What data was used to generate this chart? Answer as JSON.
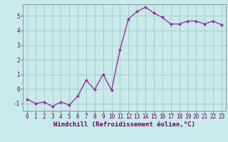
{
  "x": [
    0,
    1,
    2,
    3,
    4,
    5,
    6,
    7,
    8,
    9,
    10,
    11,
    12,
    13,
    14,
    15,
    16,
    17,
    18,
    19,
    20,
    21,
    22,
    23
  ],
  "y": [
    -0.7,
    -1.0,
    -0.9,
    -1.2,
    -0.9,
    -1.1,
    -0.5,
    0.6,
    -0.05,
    1.0,
    -0.1,
    2.7,
    4.8,
    5.3,
    5.6,
    5.2,
    4.9,
    4.45,
    4.45,
    4.65,
    4.65,
    4.45,
    4.65,
    4.4
  ],
  "line_color": "#993399",
  "marker": "D",
  "marker_size": 2.0,
  "bg_color": "#c8eaea",
  "grid_color": "#a0c8c8",
  "xlabel": "Windchill (Refroidissement éolien,°C)",
  "xlim": [
    -0.5,
    23.5
  ],
  "ylim": [
    -1.5,
    5.8
  ],
  "yticks": [
    -1,
    0,
    1,
    2,
    3,
    4,
    5
  ],
  "xticks": [
    0,
    1,
    2,
    3,
    4,
    5,
    6,
    7,
    8,
    9,
    10,
    11,
    12,
    13,
    14,
    15,
    16,
    17,
    18,
    19,
    20,
    21,
    22,
    23
  ],
  "tick_fontsize": 5.5,
  "xlabel_fontsize": 6.5,
  "linewidth": 1.0,
  "spine_color": "#8899aa"
}
